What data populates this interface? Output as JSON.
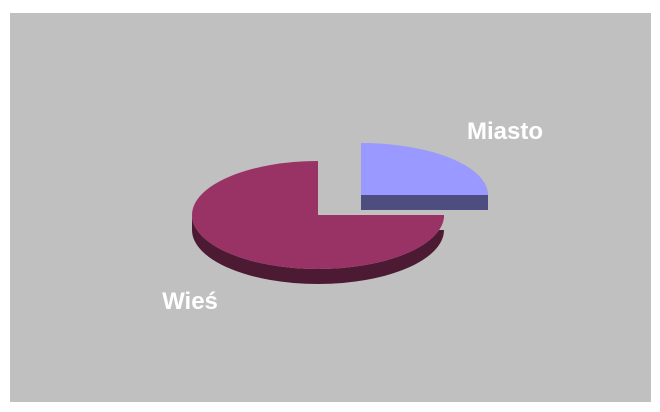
{
  "chart_data": {
    "type": "pie",
    "style": "3d-exploded",
    "slices": [
      {
        "label": "Miasto",
        "value": 25,
        "color": "#9999ff",
        "side_color": "#4d4d80"
      },
      {
        "label": "Wieś",
        "value": 75,
        "color": "#993366",
        "side_color": "#4d1a33"
      }
    ],
    "background": "#c0c0c0",
    "legend": "none"
  }
}
